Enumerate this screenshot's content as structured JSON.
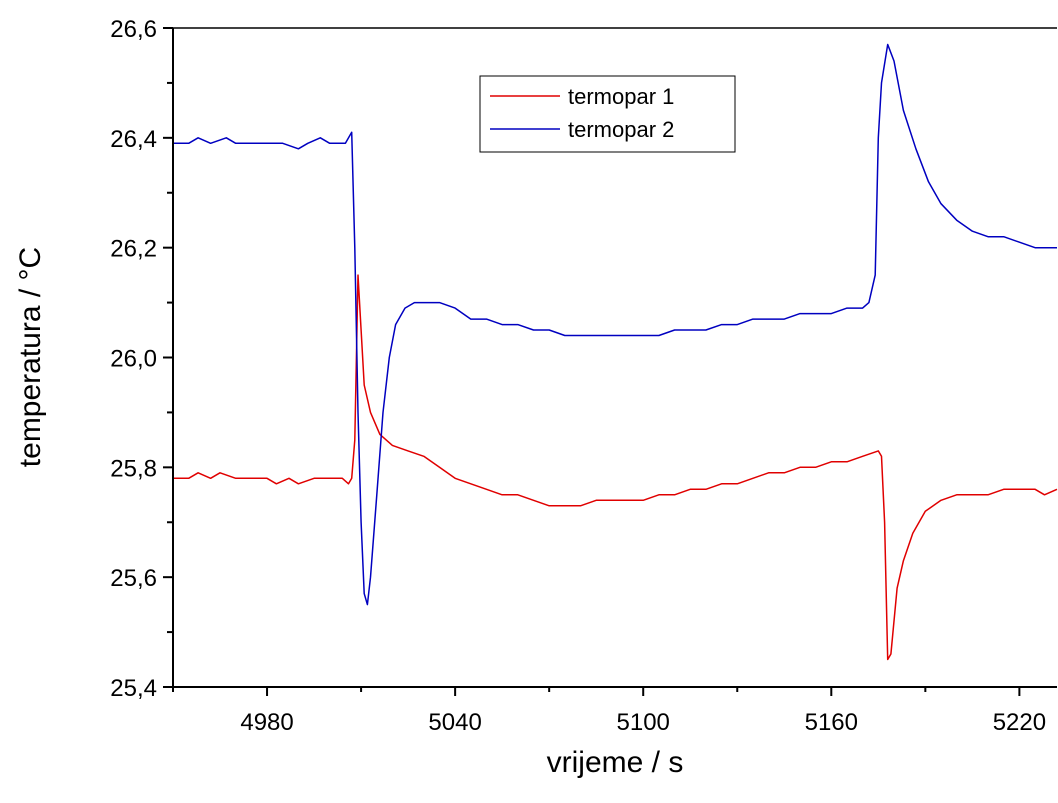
{
  "chart_data": {
    "type": "line",
    "xlabel": "vrijeme / s",
    "ylabel": "temperatura / °C",
    "xlim": [
      4950,
      5232
    ],
    "ylim": [
      25.4,
      26.6
    ],
    "x_ticks": [
      4980,
      5040,
      5100,
      5160,
      5220
    ],
    "x_tick_labels": [
      "4980",
      "5040",
      "5100",
      "5160",
      "5220"
    ],
    "y_ticks": [
      25.4,
      25.6,
      25.8,
      26.0,
      26.2,
      26.4,
      26.6
    ],
    "y_tick_labels": [
      "25,4",
      "25,6",
      "25,8",
      "26,0",
      "26,2",
      "26,4",
      "26,6"
    ],
    "grid": false,
    "legend_position": "top-center",
    "series": [
      {
        "name": "termopar 1",
        "color": "#e00000",
        "points": [
          [
            4950,
            25.78
          ],
          [
            4955,
            25.78
          ],
          [
            4958,
            25.79
          ],
          [
            4962,
            25.78
          ],
          [
            4965,
            25.79
          ],
          [
            4970,
            25.78
          ],
          [
            4975,
            25.78
          ],
          [
            4980,
            25.78
          ],
          [
            4983,
            25.77
          ],
          [
            4987,
            25.78
          ],
          [
            4990,
            25.77
          ],
          [
            4995,
            25.78
          ],
          [
            5000,
            25.78
          ],
          [
            5004,
            25.78
          ],
          [
            5006,
            25.77
          ],
          [
            5007,
            25.78
          ],
          [
            5008,
            25.85
          ],
          [
            5009,
            26.15
          ],
          [
            5010,
            26.05
          ],
          [
            5011,
            25.95
          ],
          [
            5013,
            25.9
          ],
          [
            5016,
            25.86
          ],
          [
            5020,
            25.84
          ],
          [
            5025,
            25.83
          ],
          [
            5030,
            25.82
          ],
          [
            5035,
            25.8
          ],
          [
            5040,
            25.78
          ],
          [
            5045,
            25.77
          ],
          [
            5050,
            25.76
          ],
          [
            5055,
            25.75
          ],
          [
            5060,
            25.75
          ],
          [
            5065,
            25.74
          ],
          [
            5070,
            25.73
          ],
          [
            5075,
            25.73
          ],
          [
            5080,
            25.73
          ],
          [
            5085,
            25.74
          ],
          [
            5090,
            25.74
          ],
          [
            5095,
            25.74
          ],
          [
            5100,
            25.74
          ],
          [
            5105,
            25.75
          ],
          [
            5110,
            25.75
          ],
          [
            5115,
            25.76
          ],
          [
            5120,
            25.76
          ],
          [
            5125,
            25.77
          ],
          [
            5130,
            25.77
          ],
          [
            5135,
            25.78
          ],
          [
            5140,
            25.79
          ],
          [
            5145,
            25.79
          ],
          [
            5150,
            25.8
          ],
          [
            5155,
            25.8
          ],
          [
            5160,
            25.81
          ],
          [
            5165,
            25.81
          ],
          [
            5170,
            25.82
          ],
          [
            5175,
            25.83
          ],
          [
            5176,
            25.82
          ],
          [
            5177,
            25.7
          ],
          [
            5178,
            25.45
          ],
          [
            5179,
            25.46
          ],
          [
            5181,
            25.58
          ],
          [
            5183,
            25.63
          ],
          [
            5186,
            25.68
          ],
          [
            5190,
            25.72
          ],
          [
            5195,
            25.74
          ],
          [
            5200,
            25.75
          ],
          [
            5205,
            25.75
          ],
          [
            5210,
            25.75
          ],
          [
            5215,
            25.76
          ],
          [
            5220,
            25.76
          ],
          [
            5225,
            25.76
          ],
          [
            5228,
            25.75
          ],
          [
            5232,
            25.76
          ]
        ]
      },
      {
        "name": "termopar 2",
        "color": "#0000c0",
        "points": [
          [
            4950,
            26.39
          ],
          [
            4955,
            26.39
          ],
          [
            4958,
            26.4
          ],
          [
            4962,
            26.39
          ],
          [
            4967,
            26.4
          ],
          [
            4970,
            26.39
          ],
          [
            4975,
            26.39
          ],
          [
            4980,
            26.39
          ],
          [
            4985,
            26.39
          ],
          [
            4990,
            26.38
          ],
          [
            4993,
            26.39
          ],
          [
            4997,
            26.4
          ],
          [
            5000,
            26.39
          ],
          [
            5005,
            26.39
          ],
          [
            5007,
            26.41
          ],
          [
            5008,
            26.2
          ],
          [
            5009,
            25.9
          ],
          [
            5010,
            25.7
          ],
          [
            5011,
            25.57
          ],
          [
            5012,
            25.55
          ],
          [
            5013,
            25.6
          ],
          [
            5015,
            25.75
          ],
          [
            5017,
            25.9
          ],
          [
            5019,
            26.0
          ],
          [
            5021,
            26.06
          ],
          [
            5024,
            26.09
          ],
          [
            5027,
            26.1
          ],
          [
            5030,
            26.1
          ],
          [
            5035,
            26.1
          ],
          [
            5040,
            26.09
          ],
          [
            5045,
            26.07
          ],
          [
            5050,
            26.07
          ],
          [
            5055,
            26.06
          ],
          [
            5060,
            26.06
          ],
          [
            5065,
            26.05
          ],
          [
            5070,
            26.05
          ],
          [
            5075,
            26.04
          ],
          [
            5080,
            26.04
          ],
          [
            5085,
            26.04
          ],
          [
            5090,
            26.04
          ],
          [
            5095,
            26.04
          ],
          [
            5100,
            26.04
          ],
          [
            5105,
            26.04
          ],
          [
            5110,
            26.05
          ],
          [
            5115,
            26.05
          ],
          [
            5120,
            26.05
          ],
          [
            5125,
            26.06
          ],
          [
            5130,
            26.06
          ],
          [
            5135,
            26.07
          ],
          [
            5140,
            26.07
          ],
          [
            5145,
            26.07
          ],
          [
            5150,
            26.08
          ],
          [
            5155,
            26.08
          ],
          [
            5160,
            26.08
          ],
          [
            5165,
            26.09
          ],
          [
            5170,
            26.09
          ],
          [
            5172,
            26.1
          ],
          [
            5174,
            26.15
          ],
          [
            5175,
            26.4
          ],
          [
            5176,
            26.5
          ],
          [
            5178,
            26.57
          ],
          [
            5180,
            26.54
          ],
          [
            5183,
            26.45
          ],
          [
            5187,
            26.38
          ],
          [
            5191,
            26.32
          ],
          [
            5195,
            26.28
          ],
          [
            5200,
            26.25
          ],
          [
            5205,
            26.23
          ],
          [
            5210,
            26.22
          ],
          [
            5215,
            26.22
          ],
          [
            5220,
            26.21
          ],
          [
            5225,
            26.2
          ],
          [
            5232,
            26.2
          ]
        ]
      }
    ]
  }
}
